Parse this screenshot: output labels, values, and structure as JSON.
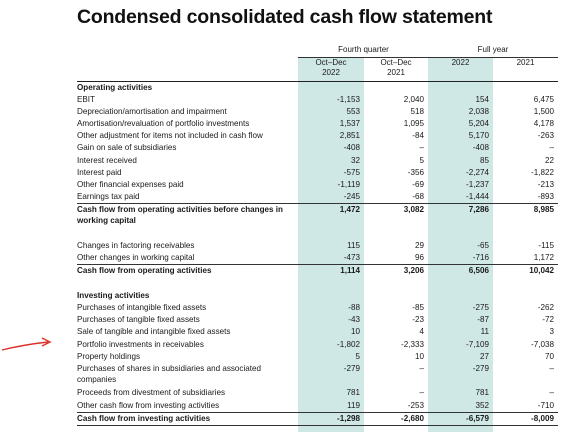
{
  "title": "Condensed consolidated cash flow statement",
  "groups": {
    "fourth_quarter": "Fourth quarter",
    "full_year": "Full year"
  },
  "columns": [
    {
      "line1": "Oct–Dec",
      "line2": "2022"
    },
    {
      "line1": "Oct–Dec",
      "line2": "2021"
    },
    {
      "line1": "",
      "line2": "2022"
    },
    {
      "line1": "",
      "line2": "2021"
    }
  ],
  "rows": [
    {
      "label": "Operating activities",
      "values": [
        "",
        "",
        "",
        ""
      ],
      "style": "sec"
    },
    {
      "label": "EBIT",
      "values": [
        "-1,153",
        "2,040",
        "154",
        "6,475"
      ]
    },
    {
      "label": "Depreciation/amortisation and impairment",
      "values": [
        "553",
        "518",
        "2,038",
        "1,500"
      ]
    },
    {
      "label": "Amortisation/revaluation of portfolio investments",
      "values": [
        "1,537",
        "1,095",
        "5,204",
        "4,178"
      ]
    },
    {
      "label": "Other adjustment for items not included in cash flow",
      "values": [
        "2,851",
        "-84",
        "5,170",
        "-263"
      ]
    },
    {
      "label": "Gain on sale of subsidiaries",
      "values": [
        "-408",
        "–",
        "-408",
        "–"
      ]
    },
    {
      "label": "Interest received",
      "values": [
        "32",
        "5",
        "85",
        "22"
      ]
    },
    {
      "label": "Interest paid",
      "values": [
        "-575",
        "-356",
        "-2,274",
        "-1,822"
      ]
    },
    {
      "label": "Other financial expenses paid",
      "values": [
        "-1,119",
        "-69",
        "-1,237",
        "-213"
      ]
    },
    {
      "label": "Earnings tax paid",
      "values": [
        "-245",
        "-68",
        "-1,444",
        "-893"
      ]
    },
    {
      "label": "Cash flow from operating activities before changes in working capital",
      "values": [
        "1,472",
        "3,082",
        "7,286",
        "8,985"
      ],
      "style": "bold tall"
    },
    {
      "label": "Changes in factoring receivables",
      "values": [
        "115",
        "29",
        "-65",
        "-115"
      ]
    },
    {
      "label": "Other changes in working capital",
      "values": [
        "-473",
        "96",
        "-716",
        "1,172"
      ]
    },
    {
      "label": "Cash flow from operating activities",
      "values": [
        "1,114",
        "3,206",
        "6,506",
        "10,042"
      ],
      "style": "bold"
    },
    {
      "label": "Investing activities",
      "values": [
        "",
        "",
        "",
        ""
      ],
      "style": "sec"
    },
    {
      "label": "Purchases of intangible fixed assets",
      "values": [
        "-88",
        "-85",
        "-275",
        "-262"
      ]
    },
    {
      "label": "Purchases of tangible fixed assets",
      "values": [
        "-43",
        "-23",
        "-87",
        "-72"
      ]
    },
    {
      "label": "Sale of tangible and intangible fixed assets",
      "values": [
        "10",
        "4",
        "11",
        "3"
      ]
    },
    {
      "label": "Portfolio investments in receivables",
      "values": [
        "-1,802",
        "-2,333",
        "-7,109",
        "-7,038"
      ]
    },
    {
      "label": "Property holdings",
      "values": [
        "5",
        "10",
        "27",
        "70"
      ]
    },
    {
      "label": "Purchases of shares in subsidiaries and associated companies",
      "values": [
        "-279",
        "–",
        "-279",
        "–"
      ],
      "style": "tall"
    },
    {
      "label": "Proceeds from divestment of subsidiaries",
      "values": [
        "781",
        "–",
        "781",
        "–"
      ]
    },
    {
      "label": "Other cash flow from investing activities",
      "values": [
        "119",
        "-253",
        "352",
        "-710"
      ]
    },
    {
      "label": "Cash flow from investing activities",
      "values": [
        "-1,298",
        "-2,680",
        "-6,579",
        "-8,009"
      ],
      "style": "bold"
    }
  ],
  "colors": {
    "column_shade": "#cfe8e6",
    "annotation_arrow": "#e0302a"
  }
}
